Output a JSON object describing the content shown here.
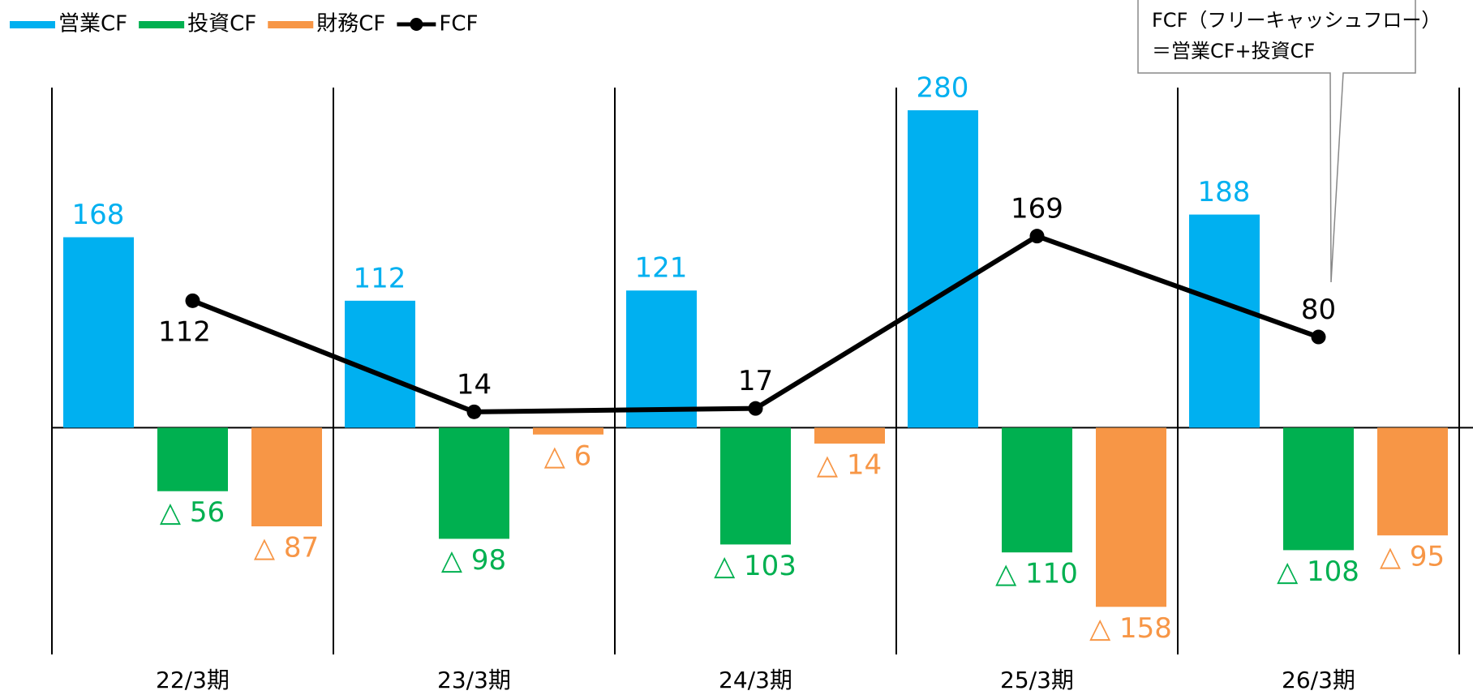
{
  "chart_data": {
    "type": "bar",
    "categories": [
      "22/3期",
      "23/3期",
      "24/3期",
      "25/3期",
      "26/3期"
    ],
    "series": [
      {
        "name": "営業CF",
        "color": "#00b0f0",
        "values": [
          168,
          112,
          121,
          280,
          188
        ]
      },
      {
        "name": "投資CF",
        "color": "#00b050",
        "values": [
          -56,
          -98,
          -103,
          -110,
          -108
        ],
        "value_labels": [
          "△ 56",
          "△ 98",
          "△ 103",
          "△ 110",
          "△ 108"
        ]
      },
      {
        "name": "財務CF",
        "color": "#f79646",
        "values": [
          -87,
          -6,
          -14,
          -158,
          -95
        ],
        "value_labels": [
          "△ 87",
          "△ 6",
          "△ 14",
          "△ 158",
          "△ 95"
        ]
      },
      {
        "name": "FCF",
        "type": "line",
        "color": "#000000",
        "values": [
          112,
          14,
          17,
          169,
          80
        ]
      }
    ],
    "ylim": [
      -200,
      300
    ],
    "legend": "top-left",
    "annotations": [
      "FCF（フリーキャッシュフロー）",
      "＝営業CF+投資CF"
    ]
  }
}
